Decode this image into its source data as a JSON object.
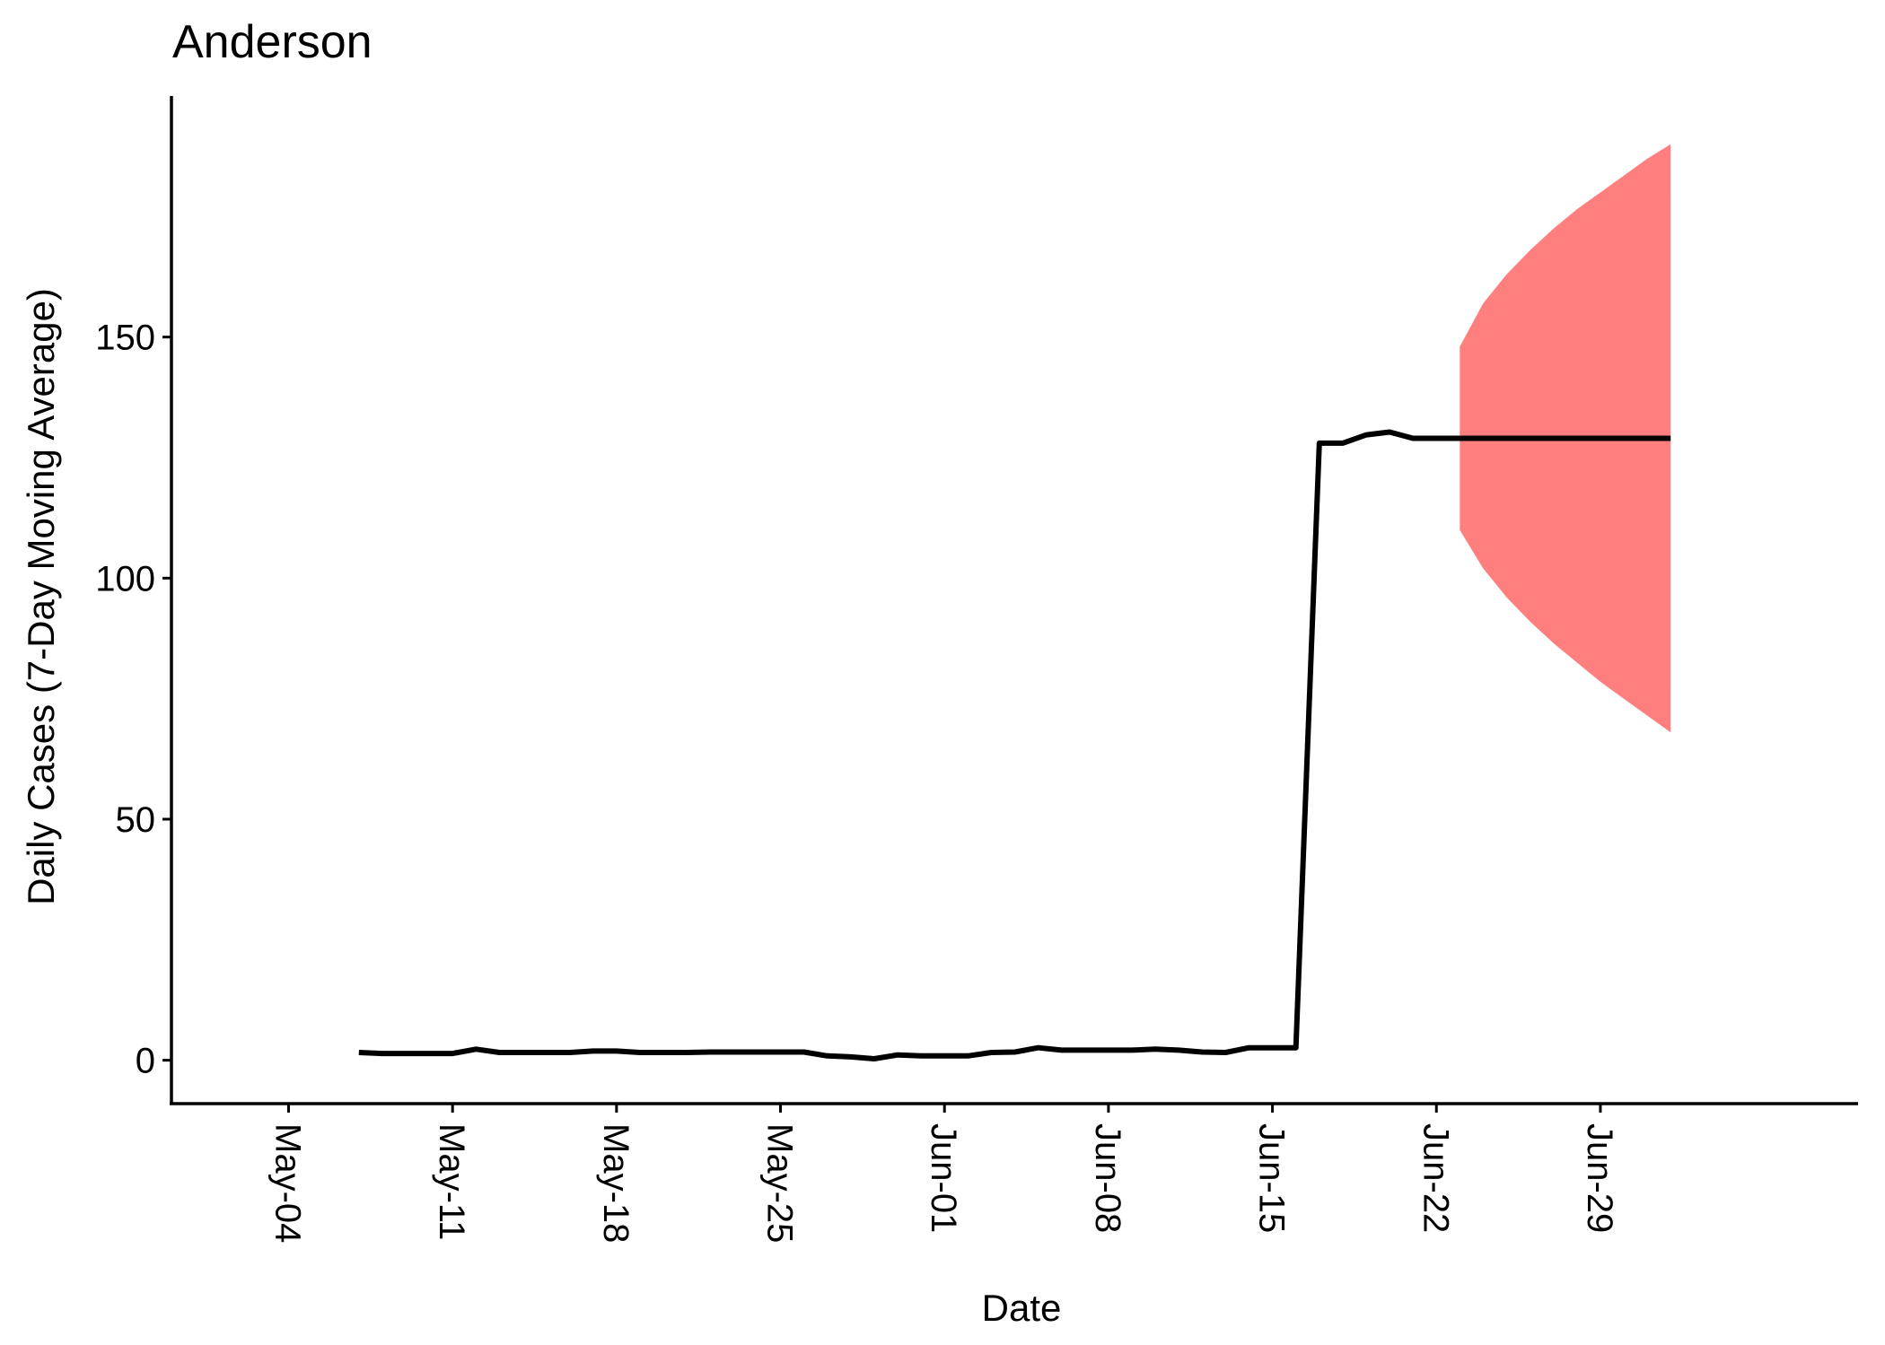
{
  "chart_data": {
    "type": "line",
    "title": "Anderson",
    "xlabel": "Date",
    "ylabel": "Daily Cases (7-Day Moving Average)",
    "x_ticks": [
      "May-04",
      "May-11",
      "May-18",
      "May-25",
      "Jun-01",
      "Jun-08",
      "Jun-15",
      "Jun-22",
      "Jun-29"
    ],
    "y_ticks": [
      0,
      50,
      100,
      150
    ],
    "xlim": [
      "2020-04-29",
      "2020-07-10"
    ],
    "ylim": [
      -9,
      200
    ],
    "grid": false,
    "legend": "none",
    "colors": {
      "series": "#000000",
      "band": "#ff7f7f"
    },
    "series": [
      {
        "x": [
          "2020-05-07",
          "2020-05-08",
          "2020-05-09",
          "2020-05-10",
          "2020-05-11",
          "2020-05-12",
          "2020-05-13",
          "2020-05-14",
          "2020-05-15",
          "2020-05-16",
          "2020-05-17",
          "2020-05-18",
          "2020-05-19",
          "2020-05-20",
          "2020-05-21",
          "2020-05-22",
          "2020-05-23",
          "2020-05-24",
          "2020-05-25",
          "2020-05-26",
          "2020-05-27",
          "2020-05-28",
          "2020-05-29",
          "2020-05-30",
          "2020-05-31",
          "2020-06-01",
          "2020-06-02",
          "2020-06-03",
          "2020-06-04",
          "2020-06-05",
          "2020-06-06",
          "2020-06-07",
          "2020-06-08",
          "2020-06-09",
          "2020-06-10",
          "2020-06-11",
          "2020-06-12",
          "2020-06-13",
          "2020-06-14",
          "2020-06-15",
          "2020-06-16",
          "2020-06-17",
          "2020-06-18",
          "2020-06-19",
          "2020-06-20",
          "2020-06-21",
          "2020-06-22",
          "2020-06-23",
          "2020-06-24",
          "2020-06-25",
          "2020-06-26",
          "2020-06-27",
          "2020-06-28",
          "2020-06-29",
          "2020-06-30",
          "2020-07-01",
          "2020-07-02"
        ],
        "values": [
          1.6,
          1.4,
          1.4,
          1.4,
          1.4,
          2.3,
          1.6,
          1.6,
          1.6,
          1.6,
          1.9,
          1.9,
          1.6,
          1.6,
          1.6,
          1.7,
          1.7,
          1.7,
          1.7,
          1.7,
          0.9,
          0.7,
          0.3,
          1.1,
          0.9,
          0.9,
          0.9,
          1.6,
          1.7,
          2.6,
          2.1,
          2.1,
          2.1,
          2.1,
          2.3,
          2.1,
          1.7,
          1.6,
          2.6,
          2.6,
          2.6,
          128,
          128,
          129.7,
          130.3,
          129,
          129,
          129,
          129,
          129,
          129,
          129,
          129,
          129,
          129,
          129,
          129
        ]
      }
    ],
    "band": {
      "x": [
        "2020-06-23",
        "2020-06-24",
        "2020-06-25",
        "2020-06-26",
        "2020-06-27",
        "2020-06-28",
        "2020-06-29",
        "2020-06-30",
        "2020-07-01",
        "2020-07-02"
      ],
      "lower": [
        110,
        102,
        96,
        91,
        86.5,
        82.5,
        78.5,
        75,
        71.5,
        68
      ],
      "upper": [
        148,
        157,
        163,
        168,
        172.5,
        176.5,
        180,
        183.5,
        187,
        190
      ]
    }
  }
}
